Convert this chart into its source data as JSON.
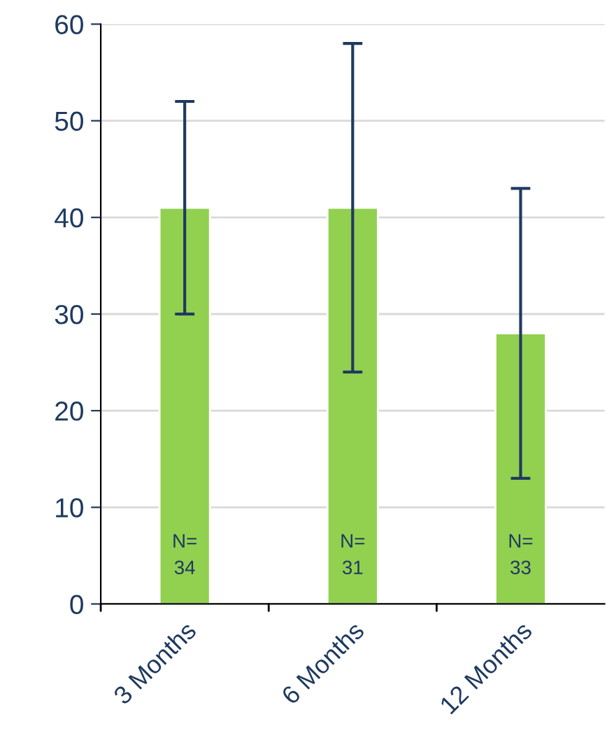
{
  "chart_data": {
    "type": "bar",
    "categories": [
      "3 Months",
      "6 Months",
      "12 Months"
    ],
    "values": [
      41,
      41,
      28
    ],
    "color": "#92d050",
    "errors": [
      [
        30,
        52
      ],
      [
        24,
        58
      ],
      [
        13,
        43
      ]
    ],
    "ylim": [
      0,
      60
    ],
    "yticks": [
      0,
      10,
      20,
      30,
      40,
      50,
      60
    ],
    "grid": "y",
    "legend": false,
    "annotations": [
      "N=\n34",
      "N=\n31",
      "N=\n33"
    ]
  }
}
